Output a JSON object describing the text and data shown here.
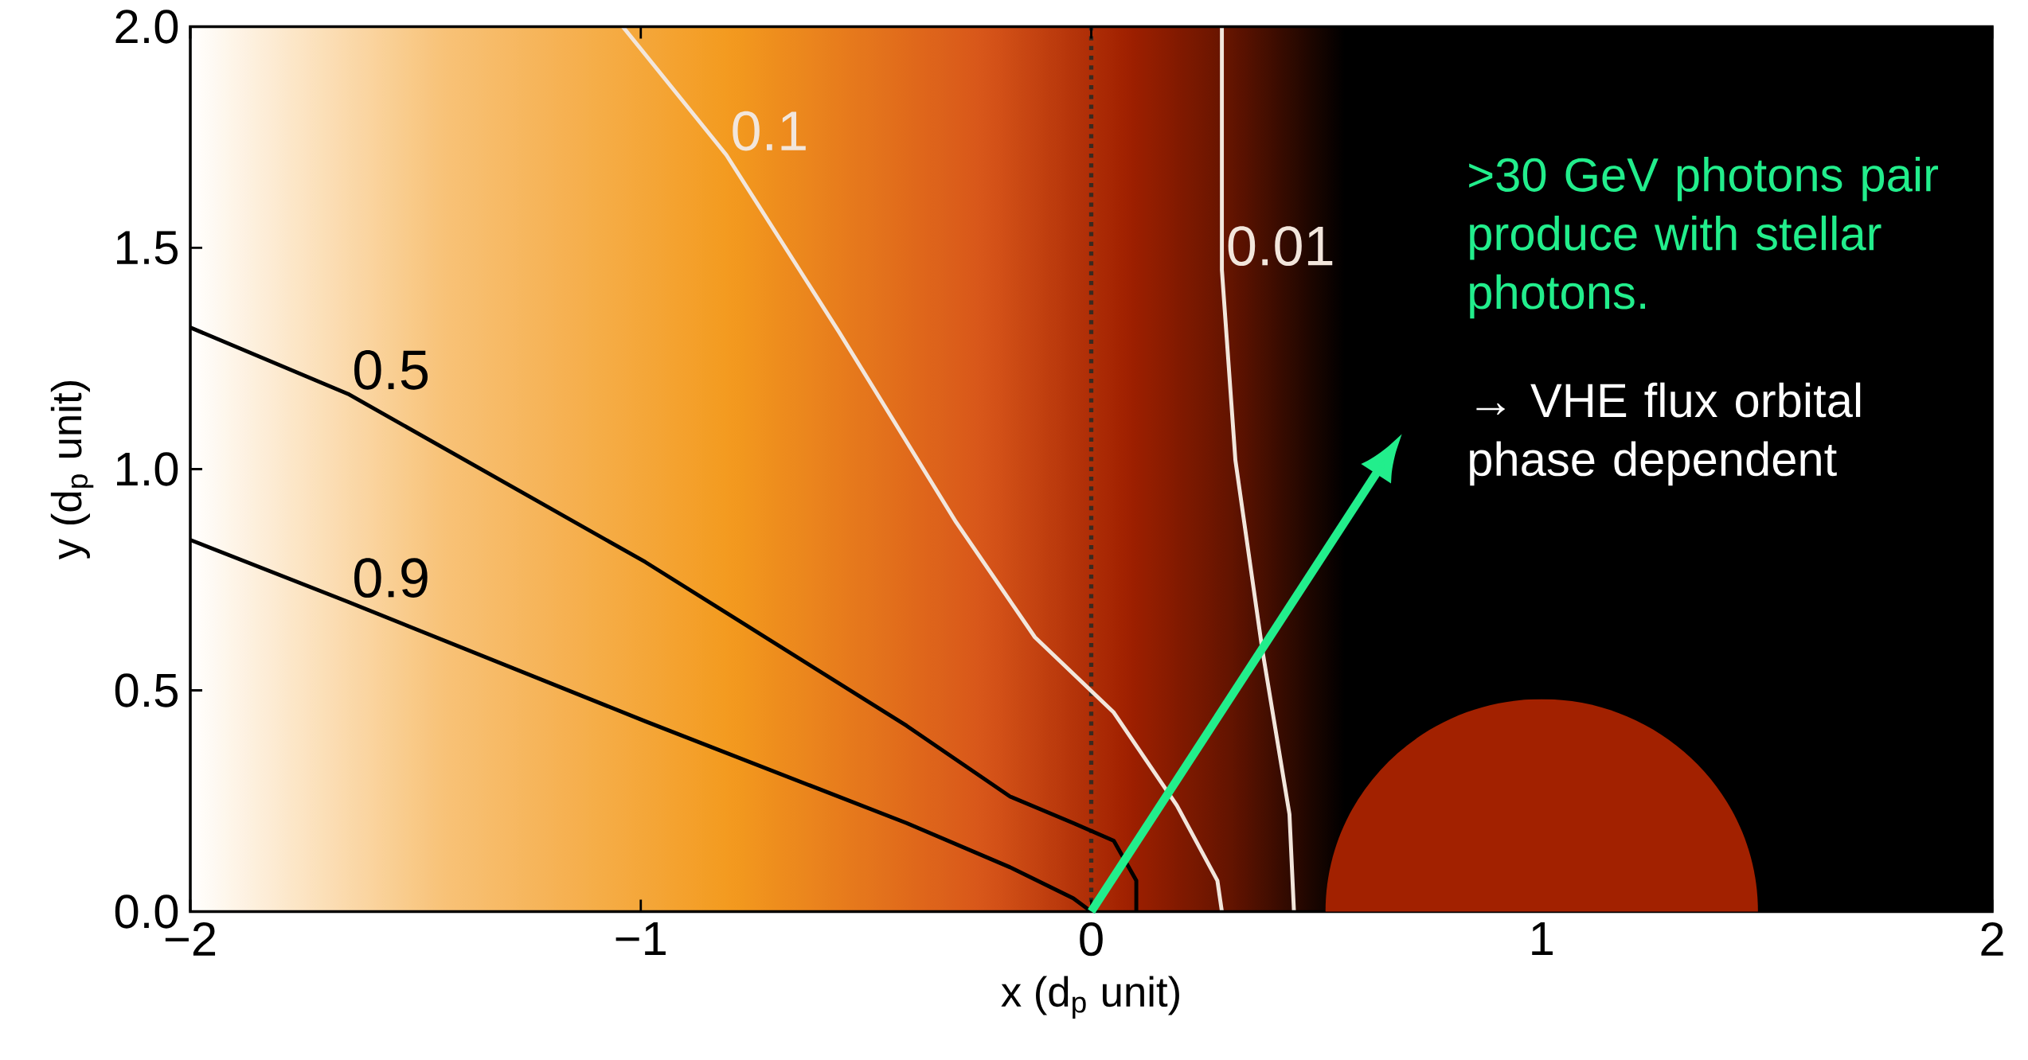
{
  "chart_data": {
    "type": "line",
    "xlabel": "x (d$_{p}$ unit)",
    "ylabel": "y (d$_{p}$ unit)",
    "xlim": [
      -2,
      2
    ],
    "ylim": [
      0,
      2
    ],
    "xticks": [
      {
        "value": -2,
        "label": "−2"
      },
      {
        "value": -1,
        "label": "−1"
      },
      0,
      1,
      2
    ],
    "yticks": [
      {
        "value": 0,
        "label": "0.0"
      },
      {
        "value": 0.5,
        "label": "0.5"
      },
      {
        "value": 1,
        "label": "1.0"
      },
      {
        "value": 1.5,
        "label": "1.5"
      },
      {
        "value": 2,
        "label": "2.0"
      }
    ],
    "series": [
      {
        "name": "0.9",
        "color": "#000000",
        "x": [
          -2,
          -1.65,
          -0.99,
          -0.41,
          -0.18,
          -0.04,
          0
        ],
        "values": [
          0.84,
          0.7,
          0.43,
          0.2,
          0.1,
          0.03,
          0
        ]
      },
      {
        "name": "0.5",
        "color": "#000000",
        "x": [
          -2,
          -1.65,
          -0.99,
          -0.41,
          -0.18,
          -0.04,
          0.05,
          0.1,
          0.1
        ],
        "values": [
          1.32,
          1.17,
          0.79,
          0.42,
          0.26,
          0.2,
          0.16,
          0.07,
          0
        ]
      },
      {
        "name": "0.1",
        "color": "#f2e6dc",
        "x": [
          -1.04,
          -0.81,
          -0.56,
          -0.3,
          -0.125,
          0.05,
          0.19,
          0.28,
          0.29
        ],
        "values": [
          2,
          1.71,
          1.31,
          0.88,
          0.62,
          0.45,
          0.24,
          0.07,
          0
        ]
      },
      {
        "name": "0.01",
        "color": "#f2e6dc",
        "x": [
          0.29,
          0.29,
          0.32,
          0.38,
          0.44,
          0.45
        ],
        "values": [
          2,
          1.45,
          1.02,
          0.59,
          0.22,
          0
        ]
      }
    ],
    "ref_lines": [
      {
        "axis": "x",
        "value": 0,
        "color": "#3a2a20",
        "line_style": "dotted"
      }
    ],
    "annotations": [
      ">30 GeV photons pair produce with stellar photons.",
      "→ VHE flux orbital phase dependent"
    ],
    "grid": false,
    "line_style": "solid"
  }
}
